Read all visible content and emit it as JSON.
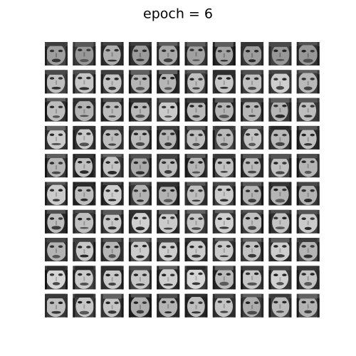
{
  "title": "epoch = 6"
}
